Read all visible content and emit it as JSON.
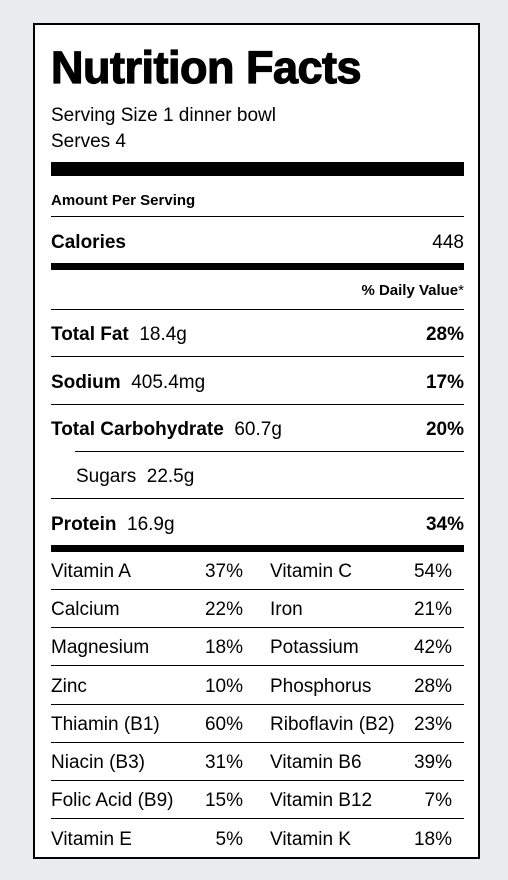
{
  "title": "Nutrition Facts",
  "serving_size": "Serving Size 1 dinner bowl",
  "serves": "Serves 4",
  "amount_per_serving": "Amount Per Serving",
  "calories": {
    "label": "Calories",
    "value": "448"
  },
  "daily_value_header": "% Daily Value",
  "daily_value_mark": "*",
  "nutrients": [
    {
      "label": "Total Fat",
      "amount": "18.4g",
      "dv": "28%"
    },
    {
      "label": "Sodium",
      "amount": "405.4mg",
      "dv": "17%"
    },
    {
      "label": "Total Carbohydrate",
      "amount": "60.7g",
      "dv": "20%"
    },
    {
      "label": "Sugars",
      "amount": "22.5g",
      "dv": ""
    },
    {
      "label": "Protein",
      "amount": "16.9g",
      "dv": "34%"
    }
  ],
  "vitamins": [
    {
      "left": {
        "name": "Vitamin A",
        "pct": "37%"
      },
      "right": {
        "name": "Vitamin C",
        "pct": "54%"
      }
    },
    {
      "left": {
        "name": "Calcium",
        "pct": "22%"
      },
      "right": {
        "name": "Iron",
        "pct": "21%"
      }
    },
    {
      "left": {
        "name": "Magnesium",
        "pct": "18%"
      },
      "right": {
        "name": "Potassium",
        "pct": "42%"
      }
    },
    {
      "left": {
        "name": "Zinc",
        "pct": "10%"
      },
      "right": {
        "name": "Phosphorus",
        "pct": "28%"
      }
    },
    {
      "left": {
        "name": "Thiamin (B1)",
        "pct": "60%"
      },
      "right": {
        "name": "Riboflavin (B2)",
        "pct": "23%"
      }
    },
    {
      "left": {
        "name": "Niacin (B3)",
        "pct": "31%"
      },
      "right": {
        "name": "Vitamin B6",
        "pct": "39%"
      }
    },
    {
      "left": {
        "name": "Folic Acid (B9)",
        "pct": "15%"
      },
      "right": {
        "name": "Vitamin B12",
        "pct": "7%"
      }
    },
    {
      "left": {
        "name": "Vitamin E",
        "pct": "5%"
      },
      "right": {
        "name": "Vitamin K",
        "pct": "18%"
      }
    }
  ]
}
